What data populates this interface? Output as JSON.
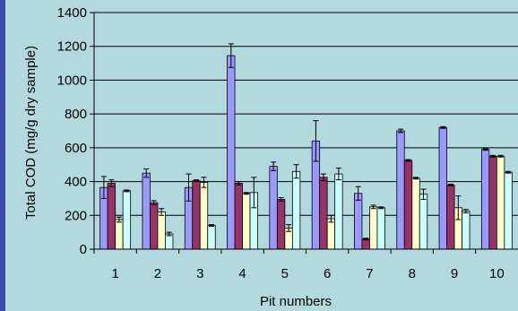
{
  "chart_data": {
    "type": "bar",
    "title": "",
    "xlabel": "Pit numbers",
    "ylabel": "Total COD (mg/g dry sample)",
    "ylim": [
      0,
      1400
    ],
    "yticks": [
      0,
      200,
      400,
      600,
      800,
      1000,
      1200,
      1400
    ],
    "grid": true,
    "legend": "none",
    "categories": [
      "1",
      "2",
      "3",
      "4",
      "5",
      "6",
      "7",
      "8",
      "9",
      "10"
    ],
    "series": [
      {
        "color": "#9999ff",
        "values": [
          365,
          450,
          365,
          1145,
          490,
          640,
          330,
          700,
          720,
          590
        ],
        "errors": [
          65,
          25,
          80,
          70,
          25,
          120,
          40,
          10,
          5,
          5
        ]
      },
      {
        "color": "#993366",
        "values": [
          390,
          275,
          405,
          390,
          295,
          425,
          60,
          525,
          380,
          550
        ],
        "errors": [
          20,
          12,
          5,
          10,
          10,
          20,
          5,
          5,
          5,
          5
        ]
      },
      {
        "color": "#ffffcc",
        "values": [
          175,
          220,
          395,
          330,
          125,
          180,
          250,
          420,
          245,
          550
        ],
        "errors": [
          15,
          20,
          30,
          5,
          20,
          20,
          10,
          5,
          70,
          5
        ]
      },
      {
        "color": "#ccffff",
        "values": [
          345,
          90,
          140,
          335,
          460,
          445,
          245,
          325,
          225,
          455
        ],
        "errors": [
          5,
          10,
          5,
          90,
          40,
          35,
          5,
          30,
          10,
          5
        ]
      }
    ]
  }
}
